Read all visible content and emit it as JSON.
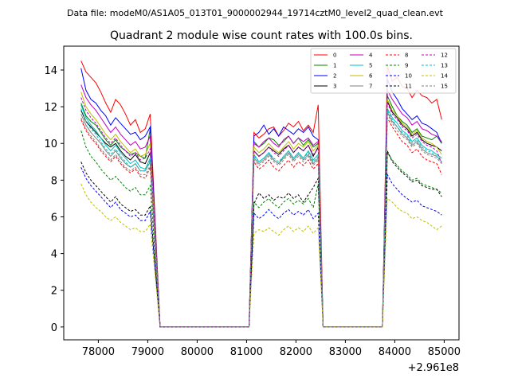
{
  "suptitle": "Data file: modeM0/AS1A05_013T01_9000002944_19714cztM0_level2_quad_clean.evt",
  "chart_data": {
    "type": "line",
    "title": "Quadrant 2 module wise count rates with 100.0s bins.",
    "xlabel": "",
    "ylabel": "",
    "x_offset_label": "+2.961e8",
    "xlim": [
      77300,
      85300
    ],
    "ylim": [
      -0.7,
      15.3
    ],
    "xticks": [
      78000,
      79000,
      80000,
      81000,
      82000,
      83000,
      84000,
      85000
    ],
    "yticks": [
      0,
      2,
      4,
      6,
      8,
      10,
      12,
      14
    ],
    "grid": false,
    "legend_position": "top-right",
    "segments": [
      {
        "x_start": 77650,
        "x_end": 79050
      },
      {
        "x_start": 81150,
        "x_end": 82450
      },
      {
        "x_start": 83850,
        "x_end": 84950
      }
    ],
    "zero_blocks": [
      {
        "x_start": 79250,
        "x_end": 81050
      },
      {
        "x_start": 82550,
        "x_end": 83750
      }
    ],
    "series": [
      {
        "name": "0",
        "color": "#ff0000",
        "dashed": false,
        "segment_values": [
          [
            14.5,
            13.9,
            13.6,
            13.3,
            12.8,
            12.2,
            11.7,
            12.4,
            12.1,
            11.6,
            11.0,
            11.3,
            10.6,
            10.8,
            11.6
          ],
          [
            10.6,
            10.3,
            10.5,
            10.8,
            10.9,
            10.4,
            10.7,
            11.1,
            10.9,
            11.2,
            10.7,
            11.0,
            10.6,
            12.1
          ],
          [
            14.2,
            13.4,
            13.6,
            13.1,
            13.0,
            12.5,
            12.9,
            12.6,
            12.5,
            12.2,
            12.4,
            11.3
          ]
        ]
      },
      {
        "name": "1",
        "color": "#008000",
        "dashed": false,
        "segment_values": [
          [
            12.2,
            11.5,
            11.2,
            11.0,
            10.6,
            10.2,
            9.9,
            10.2,
            9.8,
            9.6,
            9.4,
            9.5,
            9.3,
            9.2,
            10.8
          ],
          [
            10.1,
            9.8,
            10.0,
            10.3,
            10.2,
            9.9,
            10.1,
            10.4,
            10.0,
            10.3,
            9.9,
            10.2,
            9.8,
            10.0
          ],
          [
            12.6,
            12.0,
            11.5,
            11.2,
            11.0,
            10.6,
            10.8,
            10.4,
            10.3,
            10.2,
            10.4,
            10.0
          ]
        ]
      },
      {
        "name": "2",
        "color": "#0000ff",
        "dashed": false,
        "segment_values": [
          [
            14.1,
            12.9,
            12.4,
            12.2,
            11.8,
            11.5,
            11.0,
            11.4,
            11.1,
            10.8,
            10.5,
            10.6,
            10.2,
            10.4,
            10.9
          ],
          [
            10.4,
            10.6,
            11.0,
            10.5,
            10.8,
            10.4,
            10.9,
            10.7,
            10.5,
            10.8,
            10.6,
            10.9,
            10.4,
            10.2
          ],
          [
            13.5,
            12.8,
            12.4,
            11.9,
            11.6,
            11.3,
            11.5,
            11.1,
            11.0,
            10.8,
            10.6,
            10.0
          ]
        ]
      },
      {
        "name": "3",
        "color": "#000000",
        "dashed": false,
        "segment_values": [
          [
            11.8,
            11.2,
            10.9,
            10.6,
            10.3,
            10.0,
            9.8,
            10.0,
            9.6,
            9.3,
            9.1,
            9.4,
            9.0,
            8.9,
            9.5
          ],
          [
            9.6,
            9.3,
            9.5,
            9.8,
            9.6,
            9.4,
            9.7,
            9.9,
            9.5,
            9.8,
            9.6,
            9.9,
            9.3,
            9.8
          ],
          [
            12.3,
            11.7,
            11.4,
            11.0,
            10.8,
            10.4,
            10.6,
            10.2,
            10.0,
            9.9,
            9.8,
            9.6
          ]
        ]
      },
      {
        "name": "4",
        "color": "#bf00bf",
        "dashed": false,
        "segment_values": [
          [
            13.2,
            12.5,
            12.1,
            11.8,
            11.4,
            11.0,
            10.6,
            10.9,
            10.5,
            10.2,
            9.9,
            10.1,
            9.7,
            9.8,
            10.4
          ],
          [
            10.0,
            9.8,
            10.1,
            10.3,
            10.0,
            9.8,
            10.2,
            10.4,
            10.0,
            10.3,
            10.1,
            10.3,
            9.9,
            10.1
          ],
          [
            12.9,
            12.4,
            12.0,
            11.6,
            11.4,
            11.0,
            11.2,
            10.8,
            10.7,
            10.5,
            10.4,
            10.1
          ]
        ]
      },
      {
        "name": "5",
        "color": "#00bfbf",
        "dashed": false,
        "segment_values": [
          [
            12.1,
            11.4,
            11.0,
            10.7,
            10.3,
            9.9,
            9.6,
            9.9,
            9.5,
            9.2,
            8.9,
            9.1,
            8.7,
            8.6,
            9.2
          ],
          [
            9.4,
            9.0,
            9.2,
            9.5,
            9.1,
            8.9,
            9.3,
            9.6,
            9.2,
            9.5,
            9.2,
            9.6,
            9.1,
            9.4
          ],
          [
            11.9,
            11.4,
            11.1,
            10.7,
            10.5,
            10.1,
            10.3,
            9.9,
            9.7,
            9.6,
            9.4,
            9.2
          ]
        ]
      },
      {
        "name": "6",
        "color": "#bfbf00",
        "dashed": false,
        "segment_values": [
          [
            12.8,
            12.0,
            11.6,
            11.3,
            10.9,
            10.5,
            10.2,
            10.5,
            10.1,
            9.8,
            9.5,
            9.7,
            9.3,
            9.4,
            10.0
          ],
          [
            9.8,
            9.5,
            9.7,
            10.0,
            9.7,
            9.5,
            9.8,
            10.1,
            9.7,
            10.0,
            9.8,
            10.1,
            9.6,
            9.9
          ],
          [
            12.4,
            11.8,
            11.5,
            11.1,
            10.9,
            10.5,
            10.7,
            10.3,
            10.1,
            10.0,
            9.8,
            9.4
          ]
        ]
      },
      {
        "name": "7",
        "color": "#808080",
        "dashed": false,
        "segment_values": [
          [
            11.6,
            11.0,
            10.6,
            10.3,
            10.0,
            9.6,
            9.3,
            9.6,
            9.2,
            8.9,
            8.7,
            8.9,
            8.5,
            8.5,
            9.0
          ],
          [
            9.2,
            8.9,
            9.1,
            9.4,
            9.1,
            8.9,
            9.2,
            9.5,
            9.1,
            9.4,
            9.1,
            9.4,
            8.9,
            9.2
          ],
          [
            11.7,
            11.2,
            10.9,
            10.5,
            10.3,
            9.9,
            10.1,
            9.7,
            9.5,
            9.4,
            9.3,
            9.0
          ]
        ]
      },
      {
        "name": "8",
        "color": "#ff0000",
        "dashed": true,
        "segment_values": [
          [
            11.3,
            10.7,
            10.3,
            10.0,
            9.6,
            9.3,
            9.0,
            9.3,
            8.9,
            8.6,
            8.4,
            8.6,
            8.2,
            8.1,
            8.7
          ],
          [
            9.0,
            8.6,
            8.8,
            9.1,
            8.7,
            8.5,
            8.8,
            9.1,
            8.7,
            9.0,
            8.8,
            9.1,
            8.6,
            8.9
          ],
          [
            11.4,
            10.9,
            10.5,
            10.1,
            9.9,
            9.5,
            9.7,
            9.3,
            9.1,
            9.0,
            8.9,
            8.3
          ]
        ]
      },
      {
        "name": "9",
        "color": "#008000",
        "dashed": true,
        "segment_values": [
          [
            10.7,
            9.8,
            9.3,
            9.0,
            8.6,
            8.3,
            8.0,
            8.2,
            7.9,
            7.6,
            7.4,
            7.6,
            7.2,
            7.2,
            7.7
          ],
          [
            6.8,
            6.5,
            6.8,
            7.0,
            6.7,
            6.5,
            6.8,
            7.0,
            6.7,
            6.9,
            6.7,
            7.0,
            6.5,
            7.8
          ],
          [
            9.5,
            9.1,
            8.8,
            8.5,
            8.3,
            8.0,
            8.1,
            7.8,
            7.7,
            7.6,
            7.5,
            7.3
          ]
        ]
      },
      {
        "name": "10",
        "color": "#0000ff",
        "dashed": true,
        "segment_values": [
          [
            8.7,
            8.1,
            7.7,
            7.4,
            7.1,
            6.8,
            6.5,
            6.8,
            6.4,
            6.2,
            6.0,
            6.1,
            5.8,
            5.8,
            6.3
          ],
          [
            6.2,
            5.9,
            6.1,
            6.4,
            6.1,
            5.9,
            6.2,
            6.4,
            6.1,
            6.3,
            6.1,
            6.4,
            5.9,
            6.2
          ],
          [
            8.3,
            7.8,
            7.5,
            7.2,
            7.0,
            6.8,
            6.9,
            6.6,
            6.5,
            6.4,
            6.3,
            6.1
          ]
        ]
      },
      {
        "name": "11",
        "color": "#000000",
        "dashed": true,
        "segment_values": [
          [
            9.0,
            8.4,
            8.0,
            7.7,
            7.4,
            7.1,
            6.8,
            7.1,
            6.7,
            6.5,
            6.3,
            6.4,
            6.1,
            6.1,
            6.6
          ],
          [
            6.7,
            7.3,
            7.0,
            7.2,
            6.9,
            7.1,
            7.0,
            7.3,
            7.0,
            7.2,
            6.8,
            7.2,
            7.6,
            8.1
          ],
          [
            9.6,
            9.0,
            8.7,
            8.4,
            8.2,
            7.9,
            8.0,
            7.7,
            7.6,
            7.5,
            7.5,
            7.1
          ]
        ]
      },
      {
        "name": "12",
        "color": "#bf00bf",
        "dashed": true,
        "segment_values": [
          [
            12.5,
            11.8,
            11.4,
            11.1,
            10.7,
            10.3,
            10.0,
            10.3,
            9.9,
            9.6,
            9.3,
            9.5,
            9.1,
            9.2,
            9.7
          ],
          [
            9.6,
            9.3,
            9.5,
            9.8,
            9.5,
            9.3,
            9.6,
            9.9,
            9.5,
            9.8,
            9.6,
            9.9,
            9.4,
            9.7
          ],
          [
            12.2,
            11.6,
            11.3,
            10.9,
            10.7,
            10.3,
            10.5,
            10.1,
            9.9,
            9.8,
            9.6,
            8.9
          ]
        ]
      },
      {
        "name": "13",
        "color": "#00bfbf",
        "dashed": true,
        "segment_values": [
          [
            11.9,
            11.2,
            10.8,
            10.5,
            10.1,
            9.7,
            9.4,
            9.7,
            9.3,
            9.0,
            8.7,
            8.9,
            8.5,
            8.5,
            9.1
          ],
          [
            9.3,
            9.0,
            9.2,
            9.5,
            9.2,
            9.0,
            9.3,
            9.6,
            9.2,
            9.5,
            9.2,
            9.5,
            9.0,
            9.3
          ],
          [
            11.8,
            11.3,
            10.9,
            10.6,
            10.4,
            10.0,
            10.2,
            9.8,
            9.6,
            9.5,
            9.3,
            9.0
          ]
        ]
      },
      {
        "name": "14",
        "color": "#bfbf00",
        "dashed": true,
        "segment_values": [
          [
            7.8,
            7.2,
            6.8,
            6.5,
            6.3,
            6.0,
            5.8,
            6.0,
            5.7,
            5.5,
            5.3,
            5.4,
            5.2,
            5.2,
            5.6
          ],
          [
            5.1,
            5.3,
            5.2,
            5.4,
            5.2,
            5.0,
            5.3,
            5.5,
            5.2,
            5.4,
            5.2,
            5.5,
            5.1,
            5.4
          ],
          [
            7.0,
            6.8,
            6.5,
            6.3,
            6.2,
            5.9,
            6.0,
            5.8,
            5.7,
            5.5,
            5.3,
            5.5
          ]
        ]
      },
      {
        "name": "15",
        "color": "#808080",
        "dashed": true,
        "segment_values": [
          [
            11.4,
            10.8,
            10.4,
            10.1,
            9.7,
            9.4,
            9.1,
            9.4,
            9.0,
            8.7,
            8.5,
            8.7,
            8.3,
            8.3,
            8.8
          ],
          [
            9.1,
            8.8,
            9.0,
            9.3,
            9.0,
            8.8,
            9.1,
            9.4,
            9.0,
            9.3,
            9.0,
            9.3,
            8.8,
            9.1
          ],
          [
            11.6,
            11.1,
            10.7,
            10.4,
            10.2,
            9.8,
            10.0,
            9.6,
            9.4,
            9.3,
            9.2,
            8.9
          ]
        ]
      }
    ]
  }
}
